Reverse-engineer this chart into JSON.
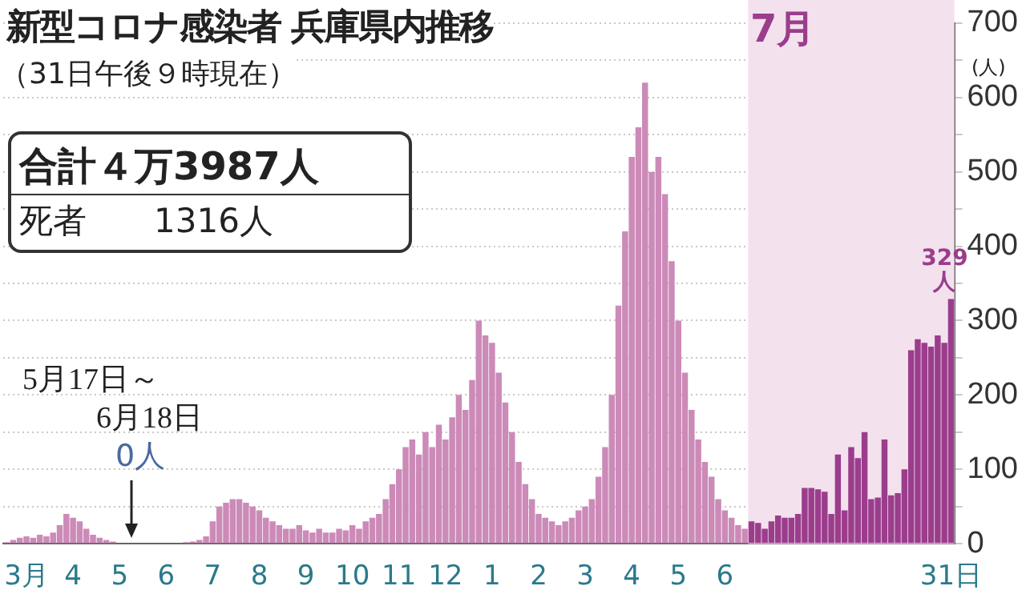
{
  "chart_data": {
    "type": "bar",
    "title": "新型コロナ感染者 兵庫県内推移",
    "subtitle": "（31日午後９時現在）",
    "ylabel": "(人)",
    "categories": [
      null,
      null,
      null,
      "3月",
      null,
      null,
      null,
      null,
      null,
      null,
      "4",
      null,
      null,
      null,
      null,
      null,
      null,
      "5",
      null,
      null,
      null,
      null,
      null,
      null,
      "6",
      null,
      null,
      null,
      null,
      null,
      null,
      "7",
      null,
      null,
      null,
      null,
      null,
      null,
      "8",
      null,
      null,
      null,
      null,
      null,
      null,
      "9",
      null,
      null,
      null,
      null,
      null,
      null,
      "10",
      null,
      null,
      null,
      null,
      null,
      null,
      "11",
      null,
      null,
      null,
      null,
      null,
      null,
      "12",
      null,
      null,
      null,
      null,
      null,
      null,
      "1",
      null,
      null,
      null,
      null,
      null,
      null,
      "2",
      null,
      null,
      null,
      null,
      null,
      null,
      "3",
      null,
      null,
      null,
      null,
      null,
      null,
      "4",
      null,
      null,
      null,
      null,
      null,
      null,
      "5",
      null,
      null,
      null,
      null,
      null,
      null,
      "6",
      null,
      null,
      null,
      null,
      null,
      null,
      null,
      null,
      null,
      null,
      null,
      null,
      null,
      null,
      null,
      null,
      null,
      null,
      null,
      null,
      null,
      null,
      null,
      null,
      null,
      null,
      null,
      null,
      null,
      null,
      null,
      null,
      null,
      "31日"
    ],
    "values": [
      2,
      5,
      8,
      10,
      8,
      12,
      10,
      15,
      25,
      40,
      35,
      30,
      20,
      12,
      8,
      5,
      3,
      1,
      0,
      0,
      0,
      0,
      0,
      0,
      0,
      0,
      1,
      2,
      3,
      5,
      10,
      30,
      50,
      55,
      60,
      60,
      55,
      50,
      45,
      35,
      30,
      25,
      20,
      20,
      25,
      18,
      15,
      20,
      15,
      15,
      20,
      18,
      25,
      20,
      30,
      35,
      40,
      60,
      80,
      100,
      130,
      140,
      120,
      150,
      130,
      160,
      140,
      170,
      200,
      180,
      220,
      300,
      280,
      270,
      230,
      190,
      150,
      110,
      80,
      60,
      40,
      35,
      30,
      25,
      30,
      35,
      45,
      50,
      60,
      90,
      130,
      200,
      320,
      420,
      520,
      560,
      620,
      500,
      520,
      470,
      380,
      300,
      230,
      180,
      140,
      110,
      90,
      60,
      45,
      35,
      25,
      20,
      30,
      28,
      20,
      30,
      38,
      35,
      35,
      40,
      75,
      75,
      73,
      70,
      40,
      120,
      45,
      130,
      115,
      150,
      60,
      62,
      140,
      65,
      68,
      100,
      260,
      275,
      270,
      265,
      280,
      270,
      329
    ],
    "colors": [
      "#cc8ab8",
      "#cc8ab8",
      "#cc8ab8",
      "#cc8ab8",
      "#cc8ab8",
      "#cc8ab8",
      "#cc8ab8",
      "#cc8ab8",
      "#cc8ab8",
      "#cc8ab8",
      "#cc8ab8",
      "#cc8ab8",
      "#cc8ab8",
      "#cc8ab8",
      "#cc8ab8",
      "#cc8ab8",
      "#cc8ab8",
      "#cc8ab8",
      "#cc8ab8",
      "#cc8ab8",
      "#cc8ab8",
      "#cc8ab8",
      "#cc8ab8",
      "#cc8ab8",
      "#cc8ab8",
      "#cc8ab8",
      "#cc8ab8",
      "#cc8ab8",
      "#cc8ab8",
      "#cc8ab8",
      "#cc8ab8",
      "#cc8ab8",
      "#cc8ab8",
      "#cc8ab8",
      "#cc8ab8",
      "#cc8ab8",
      "#cc8ab8",
      "#cc8ab8",
      "#cc8ab8",
      "#cc8ab8",
      "#cc8ab8",
      "#cc8ab8",
      "#cc8ab8",
      "#cc8ab8",
      "#cc8ab8",
      "#cc8ab8",
      "#cc8ab8",
      "#cc8ab8",
      "#cc8ab8",
      "#cc8ab8",
      "#cc8ab8",
      "#cc8ab8",
      "#cc8ab8",
      "#cc8ab8",
      "#cc8ab8",
      "#cc8ab8",
      "#cc8ab8",
      "#cc8ab8",
      "#cc8ab8",
      "#cc8ab8",
      "#cc8ab8",
      "#cc8ab8",
      "#cc8ab8",
      "#cc8ab8",
      "#cc8ab8",
      "#cc8ab8",
      "#cc8ab8",
      "#cc8ab8",
      "#cc8ab8",
      "#cc8ab8",
      "#cc8ab8",
      "#cc8ab8",
      "#cc8ab8",
      "#cc8ab8",
      "#cc8ab8",
      "#cc8ab8",
      "#cc8ab8",
      "#cc8ab8",
      "#cc8ab8",
      "#cc8ab8",
      "#cc8ab8",
      "#cc8ab8",
      "#cc8ab8",
      "#cc8ab8",
      "#cc8ab8",
      "#cc8ab8",
      "#cc8ab8",
      "#cc8ab8",
      "#cc8ab8",
      "#cc8ab8",
      "#cc8ab8",
      "#cc8ab8",
      "#cc8ab8",
      "#cc8ab8",
      "#cc8ab8",
      "#cc8ab8",
      "#cc8ab8",
      "#cc8ab8",
      "#cc8ab8",
      "#cc8ab8",
      "#cc8ab8",
      "#cc8ab8",
      "#cc8ab8",
      "#cc8ab8",
      "#cc8ab8",
      "#cc8ab8",
      "#cc8ab8",
      "#cc8ab8",
      "#cc8ab8",
      "#cc8ab8",
      "#cc8ab8",
      "#cc8ab8",
      "#9b3d8c",
      "#9b3d8c",
      "#9b3d8c",
      "#9b3d8c",
      "#9b3d8c",
      "#9b3d8c",
      "#9b3d8c",
      "#9b3d8c",
      "#9b3d8c",
      "#9b3d8c",
      "#9b3d8c",
      "#9b3d8c",
      "#9b3d8c",
      "#9b3d8c",
      "#9b3d8c",
      "#9b3d8c",
      "#9b3d8c",
      "#9b3d8c",
      "#9b3d8c",
      "#9b3d8c",
      "#9b3d8c",
      "#9b3d8c",
      "#9b3d8c",
      "#9b3d8c",
      "#9b3d8c",
      "#9b3d8c",
      "#9b3d8c",
      "#9b3d8c",
      "#9b3d8c",
      "#9b3d8c",
      "#9b3d8c"
    ],
    "ylim": [
      0,
      700
    ],
    "yticks": [
      0,
      {
        "value": 50,
        "label": null
      },
      100,
      {
        "value": 150,
        "label": null
      },
      200,
      {
        "value": 250,
        "label": null
      },
      300,
      {
        "value": 350,
        "label": null
      },
      400,
      {
        "value": 450,
        "label": null
      },
      500,
      {
        "value": 550,
        "label": null
      },
      600,
      {
        "value": 650,
        "label": null
      },
      700
    ],
    "grid": "y",
    "legend": false,
    "value_labels": [
      null,
      null,
      null,
      null,
      null,
      null,
      null,
      null,
      null,
      null,
      null,
      null,
      null,
      null,
      null,
      null,
      null,
      null,
      null,
      null,
      null,
      null,
      null,
      null,
      null,
      null,
      null,
      null,
      null,
      null,
      null,
      null,
      null,
      null,
      null,
      null,
      null,
      null,
      null,
      null,
      null,
      null,
      null,
      null,
      null,
      null,
      null,
      null,
      null,
      null,
      null,
      null,
      null,
      null,
      null,
      null,
      null,
      null,
      null,
      null,
      null,
      null,
      null,
      null,
      null,
      null,
      null,
      null,
      null,
      null,
      null,
      null,
      null,
      null,
      null,
      null,
      null,
      null,
      null,
      null,
      null,
      null,
      null,
      null,
      null,
      null,
      null,
      null,
      null,
      null,
      null,
      null,
      null,
      null,
      null,
      null,
      null,
      null,
      null,
      null,
      null,
      null,
      null,
      null,
      null,
      null,
      null,
      null,
      null,
      null,
      null,
      null,
      null,
      null,
      null,
      null,
      null,
      null,
      null,
      null,
      null,
      null,
      null,
      null,
      null,
      null,
      null,
      null,
      null,
      null,
      null,
      null,
      null,
      null,
      null,
      null,
      null,
      null,
      null,
      null,
      null,
      null,
      "329人"
    ],
    "annotations": [
      "合計４万3987人",
      "死者　　1316人",
      "5月17日～",
      "6月18日",
      "0人",
      "7月"
    ]
  }
}
